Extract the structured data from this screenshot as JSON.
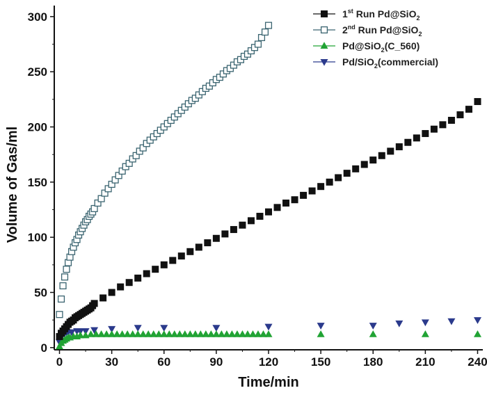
{
  "chart_data": {
    "type": "scatter",
    "xlabel": "Time/min",
    "ylabel": "Volume of Gas/ml",
    "xlim": [
      -3,
      243
    ],
    "ylim": [
      -2,
      310
    ],
    "xticks": [
      0,
      30,
      60,
      90,
      120,
      150,
      180,
      210,
      240
    ],
    "yticks": [
      0,
      50,
      100,
      150,
      200,
      250,
      300
    ],
    "grid": false,
    "legend_position": "top-right",
    "series": [
      {
        "name": "1st Run Pd@SiO2",
        "legend_parts": [
          "1",
          "st",
          " Run Pd@SiO",
          "2",
          ""
        ],
        "marker": "square-filled",
        "color": "#111111",
        "x": [
          0,
          1,
          2,
          3,
          4,
          5,
          6,
          7,
          8,
          9,
          10,
          11,
          12,
          13,
          14,
          15,
          16,
          17,
          18,
          19,
          20,
          25,
          30,
          35,
          40,
          45,
          50,
          55,
          60,
          65,
          70,
          75,
          80,
          85,
          90,
          95,
          100,
          105,
          110,
          115,
          120,
          125,
          130,
          135,
          140,
          145,
          150,
          155,
          160,
          165,
          170,
          175,
          180,
          185,
          190,
          195,
          200,
          205,
          210,
          215,
          220,
          225,
          230,
          235,
          240
        ],
        "y": [
          10,
          13,
          15,
          17,
          19,
          21,
          23,
          24,
          25,
          27,
          28,
          29,
          30,
          31,
          32,
          33,
          34,
          35,
          36,
          38,
          40,
          45,
          50,
          55,
          59,
          63,
          67,
          71,
          75,
          79,
          83,
          87,
          91,
          95,
          99,
          103,
          107,
          111,
          115,
          119,
          123,
          127,
          131,
          134,
          138,
          142,
          146,
          150,
          154,
          158,
          162,
          166,
          170,
          174,
          178,
          182,
          186,
          190,
          194,
          198,
          202,
          206,
          211,
          216,
          223
        ]
      },
      {
        "name": "2nd Run Pd@SiO2",
        "legend_parts": [
          "2",
          "nd",
          " Run Pd@SiO",
          "2",
          ""
        ],
        "marker": "square-open",
        "color": "#3a6470",
        "x": [
          0,
          1,
          2,
          3,
          4,
          5,
          6,
          7,
          8,
          9,
          10,
          11,
          12,
          13,
          14,
          15,
          16,
          17,
          18,
          19,
          20,
          22,
          24,
          26,
          28,
          30,
          32,
          34,
          36,
          38,
          40,
          42,
          44,
          46,
          48,
          50,
          52,
          54,
          56,
          58,
          60,
          62,
          64,
          66,
          68,
          70,
          72,
          74,
          76,
          78,
          80,
          82,
          84,
          86,
          88,
          90,
          92,
          94,
          96,
          98,
          100,
          102,
          104,
          106,
          108,
          110,
          112,
          114,
          116,
          118,
          120
        ],
        "y": [
          30,
          44,
          56,
          64,
          71,
          77,
          82,
          87,
          91,
          95,
          98,
          102,
          105,
          108,
          111,
          114,
          116,
          119,
          121,
          123,
          126,
          131,
          135,
          140,
          144,
          148,
          152,
          156,
          160,
          164,
          167,
          171,
          174,
          178,
          181,
          185,
          188,
          191,
          194,
          197,
          200,
          203,
          206,
          209,
          212,
          215,
          218,
          221,
          224,
          226,
          229,
          232,
          235,
          237,
          240,
          243,
          245,
          248,
          251,
          253,
          256,
          259,
          261,
          264,
          266,
          269,
          272,
          275,
          281,
          286,
          292
        ]
      },
      {
        "name": "Pd@SiO2(C_560)",
        "legend_parts": [
          "",
          "",
          "Pd@SiO",
          "2",
          "(C_560)"
        ],
        "marker": "triangle-up",
        "color": "#21a334",
        "x": [
          0,
          1,
          2,
          3,
          4,
          5,
          6,
          8,
          10,
          12,
          15,
          18,
          21,
          24,
          27,
          30,
          33,
          36,
          39,
          42,
          45,
          48,
          51,
          54,
          57,
          60,
          63,
          66,
          69,
          72,
          75,
          78,
          81,
          84,
          87,
          90,
          93,
          96,
          99,
          102,
          105,
          108,
          111,
          114,
          117,
          120,
          150,
          180,
          210,
          240
        ],
        "y": [
          1,
          4,
          6,
          7,
          8,
          9,
          9,
          10,
          10,
          11,
          11,
          12,
          12,
          12,
          12,
          12,
          12,
          12,
          12,
          12,
          12,
          12,
          12,
          12,
          12,
          12,
          12,
          12,
          12,
          12,
          12,
          12,
          12,
          12,
          12,
          12,
          12,
          12,
          12,
          12,
          12,
          12,
          12,
          12,
          12,
          12,
          12,
          12,
          12,
          12
        ]
      },
      {
        "name": "Pd/SiO2(commercial)",
        "legend_parts": [
          "",
          "",
          "Pd/SiO",
          "2",
          "(commercial)"
        ],
        "marker": "triangle-down",
        "color": "#2b3a8c",
        "x": [
          0,
          1,
          2,
          3,
          4,
          5,
          7,
          10,
          12,
          15,
          20,
          30,
          45,
          60,
          90,
          120,
          150,
          180,
          195,
          210,
          225,
          240
        ],
        "y": [
          5,
          10,
          12,
          13,
          14,
          14,
          14,
          15,
          15,
          15,
          16,
          17,
          18,
          18,
          18,
          19,
          20,
          20,
          22,
          23,
          24,
          25
        ]
      }
    ]
  }
}
